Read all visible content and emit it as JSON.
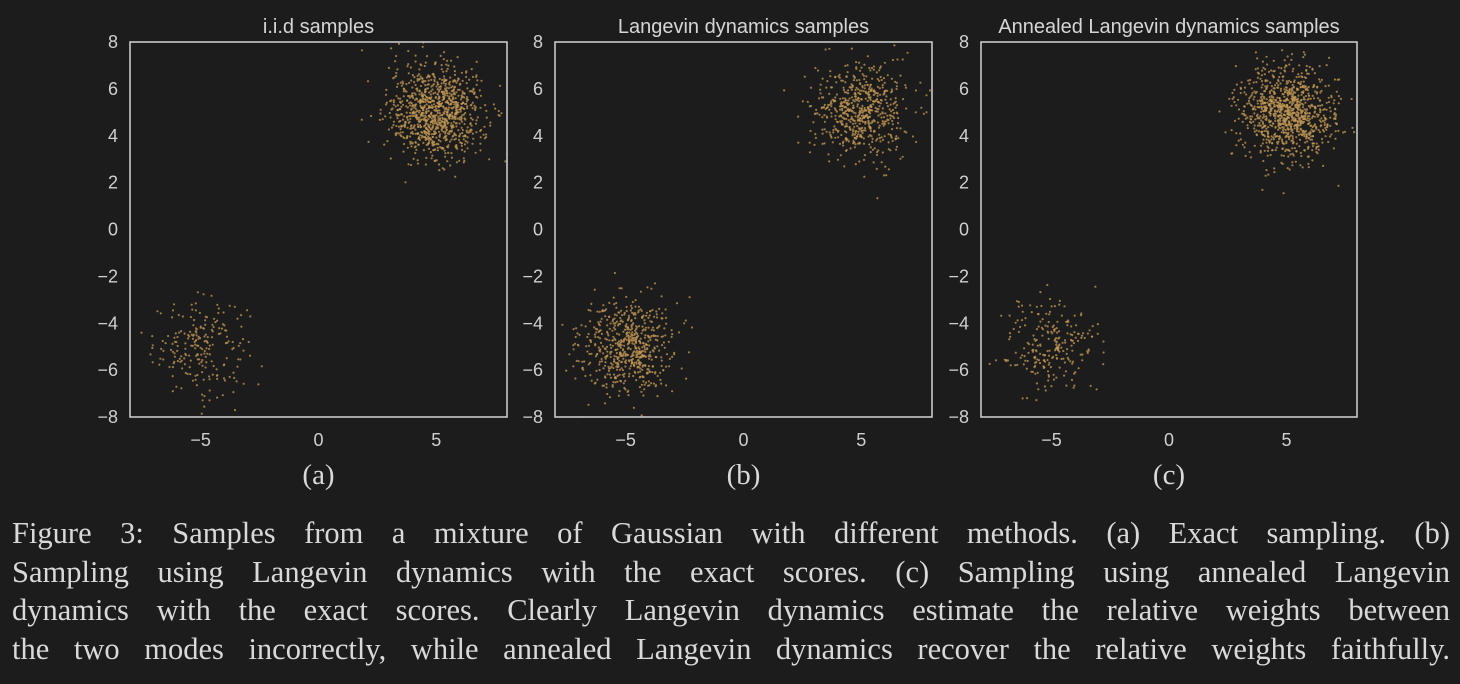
{
  "figure": {
    "background": "#1c1c1c",
    "axes_color": "#c8c8c8",
    "point_color": "#c49a55"
  },
  "chart_data": [
    {
      "type": "scatter",
      "title": "i.i.d samples",
      "sublabel": "(a)",
      "xlim": [
        -8,
        8
      ],
      "ylim": [
        -8,
        8
      ],
      "xticks": [
        -5,
        0,
        5
      ],
      "yticks": [
        8,
        6,
        4,
        2,
        0,
        -2,
        -4,
        -6,
        -8
      ],
      "xtick_labels": [
        "−5",
        "0",
        "5"
      ],
      "ytick_labels": [
        "8",
        "6",
        "4",
        "2",
        "0",
        "−2",
        "−4",
        "−6",
        "−8"
      ],
      "grid": false,
      "clusters": [
        {
          "mean": [
            -5,
            -5
          ],
          "std": 1,
          "n": 220
        },
        {
          "mean": [
            5,
            5
          ],
          "std": 1,
          "n": 1000
        }
      ]
    },
    {
      "type": "scatter",
      "title": "Langevin dynamics samples",
      "sublabel": "(b)",
      "xlim": [
        -8,
        8
      ],
      "ylim": [
        -8,
        8
      ],
      "xticks": [
        -5,
        0,
        5
      ],
      "yticks": [
        8,
        6,
        4,
        2,
        0,
        -2,
        -4,
        -6,
        -8
      ],
      "xtick_labels": [
        "−5",
        "0",
        "5"
      ],
      "ytick_labels": [
        "8",
        "6",
        "4",
        "2",
        "0",
        "−2",
        "−4",
        "−6",
        "−8"
      ],
      "grid": false,
      "clusters": [
        {
          "mean": [
            -5,
            -5
          ],
          "std": 1,
          "n": 620
        },
        {
          "mean": [
            5,
            5
          ],
          "std": 1,
          "n": 620
        }
      ]
    },
    {
      "type": "scatter",
      "title": "Annealed Langevin dynamics samples",
      "sublabel": "(c)",
      "xlim": [
        -8,
        8
      ],
      "ylim": [
        -8,
        8
      ],
      "xticks": [
        -5,
        0,
        5
      ],
      "yticks": [
        8,
        6,
        4,
        2,
        0,
        -2,
        -4,
        -6,
        -8
      ],
      "xtick_labels": [
        "−5",
        "0",
        "5"
      ],
      "ytick_labels": [
        "8",
        "6",
        "4",
        "2",
        "0",
        "−2",
        "−4",
        "−6",
        "−8"
      ],
      "grid": false,
      "clusters": [
        {
          "mean": [
            -5,
            -5
          ],
          "std": 1,
          "n": 240
        },
        {
          "mean": [
            5,
            5
          ],
          "std": 1,
          "n": 1000
        }
      ]
    }
  ],
  "caption": {
    "lines": [
      "Figure 3: Samples from a mixture of Gaussian with different methods. (a) Exact sampling. (b)",
      "Sampling using Langevin dynamics with the exact scores. (c) Sampling using annealed Langevin",
      "dynamics with the exact scores. Clearly Langevin dynamics estimate the relative weights between",
      "the two modes incorrectly, while annealed Langevin dynamics recover the relative weights faithfully."
    ]
  }
}
